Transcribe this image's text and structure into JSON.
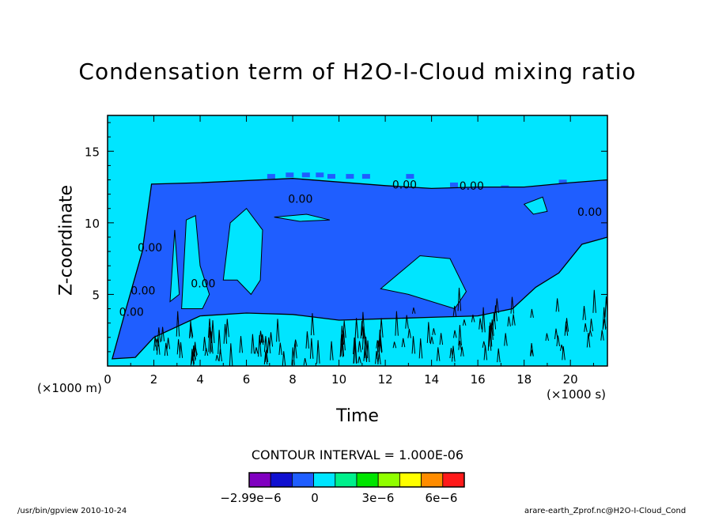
{
  "chart_data": {
    "type": "contour",
    "title": "Condensation term of H2O-I-Cloud mixing ratio",
    "xlabel": "Time",
    "ylabel": "Z-coordinate",
    "x_unit": "(×1000 s)",
    "y_unit": "(×1000 m)",
    "xlim": [
      0,
      21.6
    ],
    "ylim": [
      0,
      17.5
    ],
    "x_ticks": [
      0,
      2,
      4,
      6,
      8,
      10,
      12,
      14,
      16,
      18,
      20
    ],
    "y_ticks": [
      5,
      10,
      15
    ],
    "contour_interval_label": "CONTOUR INTERVAL = 1.000E-06",
    "contour_labels": [
      "0.00",
      "0.00",
      "0.00",
      "0.00",
      "0.00",
      "0.00",
      "0.00",
      "0.00"
    ],
    "regions": [
      {
        "level": "0",
        "color": "#00e5ff",
        "description": "background"
      },
      {
        "level": "-1e-6",
        "color": "#1f5eff",
        "outline_t_z": [
          [
            0.2,
            0.5
          ],
          [
            0.8,
            4
          ],
          [
            1.5,
            8
          ],
          [
            1.9,
            12.7
          ],
          [
            4,
            12.8
          ],
          [
            8,
            13.1
          ],
          [
            12,
            12.6
          ],
          [
            14,
            12.4
          ],
          [
            16,
            12.5
          ],
          [
            18,
            12.5
          ],
          [
            20,
            12.8
          ],
          [
            21.6,
            13.0
          ],
          [
            21.6,
            9
          ],
          [
            20.5,
            8.5
          ],
          [
            19.5,
            6.5
          ],
          [
            18.5,
            5.5
          ],
          [
            17.5,
            4
          ],
          [
            16,
            3.5
          ],
          [
            14,
            3.4
          ],
          [
            12,
            3.3
          ],
          [
            10,
            3.2
          ],
          [
            8,
            3.6
          ],
          [
            6,
            3.7
          ],
          [
            4,
            3.5
          ],
          [
            2,
            2.0
          ],
          [
            1.2,
            0.6
          ]
        ]
      },
      {
        "level": "-2e-6",
        "color": "#0000ee",
        "description": "small patches near top of cloud"
      }
    ]
  },
  "colorbar": {
    "colors": [
      "#8000c0",
      "#1010d0",
      "#1f5eff",
      "#00e5ff",
      "#00f08c",
      "#00e500",
      "#90ff00",
      "#ffff00",
      "#ff8c00",
      "#ff1a1a"
    ],
    "labels": [
      "−2.99e−6",
      "0",
      "3e−6",
      "6e−6"
    ]
  },
  "footer": {
    "left": "/usr/bin/gpview  2010-10-24",
    "right": "arare-earth_Zprof.nc@H2O-I-Cloud_Cond"
  }
}
